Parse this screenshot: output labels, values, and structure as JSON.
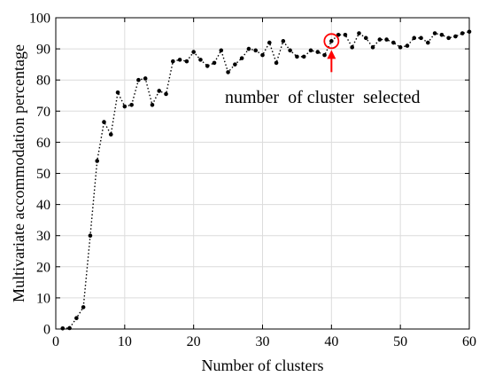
{
  "chart_data": {
    "type": "line",
    "xlabel": "Number of clusters",
    "ylabel": "Multivariate accommodation percentage",
    "xlim": [
      0,
      60
    ],
    "ylim": [
      0,
      100
    ],
    "xticks": [
      0,
      10,
      20,
      30,
      40,
      50,
      60
    ],
    "yticks": [
      0,
      10,
      20,
      30,
      40,
      50,
      60,
      70,
      80,
      90,
      100
    ],
    "grid": true,
    "line_style": "dotted",
    "marker": "dot",
    "series": [
      {
        "x": [
          1,
          2,
          3,
          4,
          5,
          6,
          7,
          8,
          9,
          10,
          11,
          12,
          13,
          14,
          15,
          16,
          17,
          18,
          19,
          20,
          21,
          22,
          23,
          24,
          25,
          26,
          27,
          28,
          29,
          30,
          31,
          32,
          33,
          34,
          35,
          36,
          37,
          38,
          39,
          40,
          41,
          42,
          43,
          44,
          45,
          46,
          47,
          48,
          49,
          50,
          51,
          52,
          53,
          54,
          55,
          56,
          57,
          58,
          59,
          60
        ],
        "y": [
          0.2,
          0.3,
          3.5,
          7,
          30,
          54,
          66.5,
          62.5,
          76,
          71.5,
          72,
          80,
          80.5,
          72,
          76.5,
          75.5,
          86,
          86.5,
          86,
          89,
          86.5,
          84.5,
          85.5,
          89.5,
          82.5,
          85,
          87,
          90,
          89.5,
          88,
          92,
          85.5,
          92.5,
          89.5,
          87.5,
          87.5,
          89.5,
          89,
          88,
          92.5,
          94.5,
          94.5,
          90.5,
          95,
          93.5,
          90.5,
          93,
          93,
          92,
          90.5,
          91,
          93.5,
          93.5,
          92,
          95,
          94.5,
          93.5,
          94,
          95,
          95.5
        ]
      }
    ],
    "annotation": {
      "text": "number  of cluster  selected",
      "x": 40,
      "y": 92.5,
      "marker": "circle",
      "arrow_color": "#ff0000"
    }
  }
}
